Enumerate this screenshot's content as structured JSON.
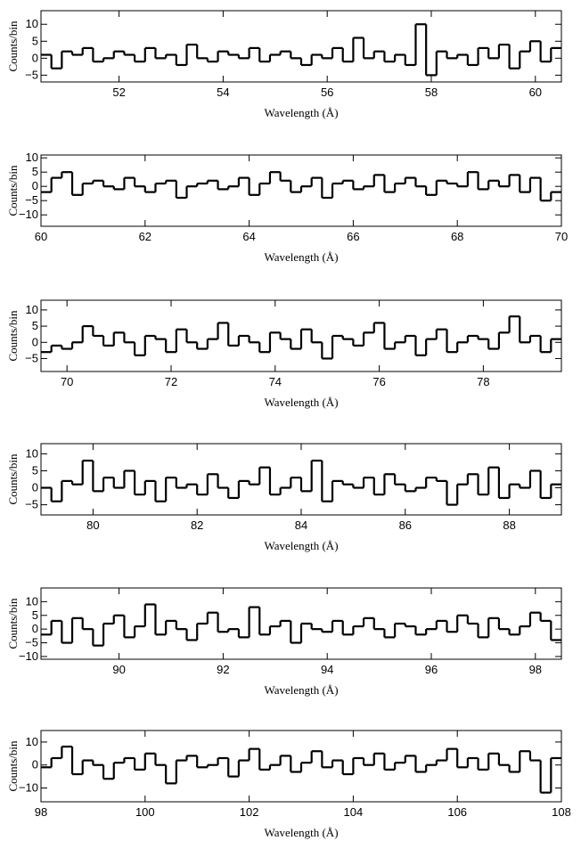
{
  "chart_data": [
    {
      "type": "histogram",
      "xlabel": "Wavelength (Å)",
      "ylabel": "Counts/bin",
      "color": "#000000",
      "bins": [
        50.5,
        50.7,
        50.9,
        51.1,
        51.3,
        51.5,
        51.7,
        51.9,
        52.1,
        52.3,
        52.5,
        52.7,
        52.9,
        53.1,
        53.3,
        53.5,
        53.7,
        53.9,
        54.1,
        54.3,
        54.5,
        54.7,
        54.9,
        55.1,
        55.3,
        55.5,
        55.7,
        55.9,
        56.1,
        56.3,
        56.5,
        56.7,
        56.9,
        57.1,
        57.3,
        57.5,
        57.7,
        57.9,
        58.1,
        58.3,
        58.5,
        58.7,
        58.9,
        59.1,
        59.3,
        59.5,
        59.7,
        59.9,
        60.1,
        60.3,
        60.5
      ],
      "values": [
        1,
        -3,
        2,
        1,
        3,
        -1,
        0,
        2,
        1,
        -1,
        3,
        0,
        1,
        -2,
        4,
        0,
        -1,
        2,
        1,
        0,
        3,
        -1,
        1,
        2,
        0,
        -2,
        1,
        0,
        3,
        -1,
        6,
        0,
        2,
        -1,
        1,
        -2,
        10,
        -5,
        2,
        0,
        1,
        -2,
        3,
        0,
        4,
        -3,
        2,
        5,
        -1,
        3
      ],
      "xlim": [
        50.5,
        60.5
      ],
      "xticks": [
        52,
        54,
        56,
        58,
        60
      ],
      "ylim": [
        -7,
        14
      ],
      "yticks": [
        {
          "value": -5,
          "label": "−5"
        },
        0,
        5,
        10
      ]
    },
    {
      "type": "histogram",
      "xlabel": "Wavelength (Å)",
      "ylabel": "Counts/bin",
      "color": "#000000",
      "bins": [
        60,
        60.2,
        60.4,
        60.6,
        60.8,
        61,
        61.2,
        61.4,
        61.6,
        61.8,
        62,
        62.2,
        62.4,
        62.6,
        62.8,
        63,
        63.2,
        63.4,
        63.6,
        63.8,
        64,
        64.2,
        64.4,
        64.6,
        64.8,
        65,
        65.2,
        65.4,
        65.6,
        65.8,
        66,
        66.2,
        66.4,
        66.6,
        66.8,
        67,
        67.2,
        67.4,
        67.6,
        67.8,
        68,
        68.2,
        68.4,
        68.6,
        68.8,
        69,
        69.2,
        69.4,
        69.6,
        69.8,
        70
      ],
      "values": [
        -2,
        3,
        5,
        -3,
        1,
        2,
        0,
        -1,
        3,
        0,
        -2,
        1,
        2,
        -4,
        0,
        1,
        2,
        -1,
        0,
        3,
        -3,
        1,
        5,
        2,
        -2,
        0,
        3,
        -4,
        1,
        2,
        -1,
        0,
        4,
        -2,
        1,
        3,
        0,
        -3,
        2,
        1,
        0,
        5,
        -1,
        2,
        0,
        4,
        -2,
        3,
        -5,
        -2
      ],
      "xlim": [
        60,
        70
      ],
      "xticks": [
        60,
        62,
        64,
        66,
        68,
        70
      ],
      "ylim": [
        -14,
        11
      ],
      "yticks": [
        {
          "value": -10,
          "label": "−10"
        },
        {
          "value": -5,
          "label": "−5"
        },
        0,
        5,
        10
      ]
    },
    {
      "type": "histogram",
      "xlabel": "Wavelength (Å)",
      "ylabel": "Counts/bin",
      "color": "#000000",
      "bins": [
        69.5,
        69.7,
        69.9,
        70.1,
        70.3,
        70.5,
        70.7,
        70.9,
        71.1,
        71.3,
        71.5,
        71.7,
        71.9,
        72.1,
        72.3,
        72.5,
        72.7,
        72.9,
        73.1,
        73.3,
        73.5,
        73.7,
        73.9,
        74.1,
        74.3,
        74.5,
        74.7,
        74.9,
        75.1,
        75.3,
        75.5,
        75.7,
        75.9,
        76.1,
        76.3,
        76.5,
        76.7,
        76.9,
        77.1,
        77.3,
        77.5,
        77.7,
        77.9,
        78.1,
        78.3,
        78.5,
        78.7,
        78.9,
        79.1,
        79.3,
        79.5
      ],
      "values": [
        -3,
        -1,
        -2,
        0,
        5,
        2,
        -1,
        3,
        0,
        -4,
        2,
        1,
        -3,
        4,
        0,
        -2,
        1,
        6,
        -1,
        2,
        0,
        -3,
        3,
        1,
        -2,
        4,
        0,
        -5,
        2,
        1,
        -1,
        3,
        6,
        -2,
        0,
        2,
        -4,
        1,
        4,
        -3,
        0,
        2,
        1,
        -2,
        3,
        8,
        0,
        2,
        -3,
        1
      ],
      "xlim": [
        69.5,
        79.5
      ],
      "xticks": [
        70,
        72,
        74,
        76,
        78
      ],
      "ylim": [
        -9,
        13
      ],
      "yticks": [
        {
          "value": -5,
          "label": "−5"
        },
        0,
        5,
        10
      ]
    },
    {
      "type": "histogram",
      "xlabel": "Wavelength (Å)",
      "ylabel": "Counts/bin",
      "color": "#000000",
      "bins": [
        79,
        79.2,
        79.4,
        79.6,
        79.8,
        80,
        80.2,
        80.4,
        80.6,
        80.8,
        81,
        81.2,
        81.4,
        81.6,
        81.8,
        82,
        82.2,
        82.4,
        82.6,
        82.8,
        83,
        83.2,
        83.4,
        83.6,
        83.8,
        84,
        84.2,
        84.4,
        84.6,
        84.8,
        85,
        85.2,
        85.4,
        85.6,
        85.8,
        86,
        86.2,
        86.4,
        86.6,
        86.8,
        87,
        87.2,
        87.4,
        87.6,
        87.8,
        88,
        88.2,
        88.4,
        88.6,
        88.8,
        89
      ],
      "values": [
        0,
        -4,
        2,
        1,
        8,
        -1,
        3,
        0,
        5,
        -2,
        2,
        -4,
        3,
        0,
        1,
        -2,
        4,
        0,
        -3,
        2,
        1,
        6,
        -2,
        0,
        3,
        -1,
        8,
        -4,
        2,
        1,
        0,
        3,
        -2,
        4,
        1,
        -1,
        0,
        3,
        2,
        -5,
        1,
        4,
        -2,
        6,
        -3,
        1,
        0,
        5,
        -3,
        1
      ],
      "xlim": [
        79,
        89
      ],
      "xticks": [
        80,
        82,
        84,
        86,
        88
      ],
      "ylim": [
        -8,
        13
      ],
      "yticks": [
        {
          "value": -5,
          "label": "−5"
        },
        0,
        5,
        10
      ]
    },
    {
      "type": "histogram",
      "xlabel": "Wavelength (Å)",
      "ylabel": "Counts/bin",
      "color": "#000000",
      "bins": [
        88.5,
        88.7,
        88.9,
        89.1,
        89.3,
        89.5,
        89.7,
        89.9,
        90.1,
        90.3,
        90.5,
        90.7,
        90.9,
        91.1,
        91.3,
        91.5,
        91.7,
        91.9,
        92.1,
        92.3,
        92.5,
        92.7,
        92.9,
        93.1,
        93.3,
        93.5,
        93.7,
        93.9,
        94.1,
        94.3,
        94.5,
        94.7,
        94.9,
        95.1,
        95.3,
        95.5,
        95.7,
        95.9,
        96.1,
        96.3,
        96.5,
        96.7,
        96.9,
        97.1,
        97.3,
        97.5,
        97.7,
        97.9,
        98.1,
        98.3,
        98.5
      ],
      "values": [
        -2,
        3,
        -5,
        4,
        0,
        -6,
        2,
        5,
        -3,
        1,
        9,
        -2,
        3,
        0,
        -4,
        2,
        6,
        -1,
        0,
        -3,
        8,
        -2,
        1,
        3,
        -5,
        2,
        0,
        -1,
        3,
        -2,
        1,
        4,
        0,
        -3,
        2,
        1,
        -2,
        0,
        3,
        -1,
        5,
        2,
        -3,
        4,
        0,
        -2,
        1,
        6,
        3,
        -4
      ],
      "xlim": [
        88.5,
        98.5
      ],
      "xticks": [
        90,
        92,
        94,
        96,
        98
      ],
      "ylim": [
        -11,
        15
      ],
      "yticks": [
        {
          "value": -10,
          "label": "−10"
        },
        {
          "value": -5,
          "label": "−5"
        },
        0,
        5,
        10
      ]
    },
    {
      "type": "histogram",
      "xlabel": "Wavelength (Å)",
      "ylabel": "Counts/bin",
      "color": "#000000",
      "bins": [
        98,
        98.2,
        98.4,
        98.6,
        98.8,
        99,
        99.2,
        99.4,
        99.6,
        99.8,
        100,
        100.2,
        100.4,
        100.6,
        100.8,
        101,
        101.2,
        101.4,
        101.6,
        101.8,
        102,
        102.2,
        102.4,
        102.6,
        102.8,
        103,
        103.2,
        103.4,
        103.6,
        103.8,
        104,
        104.2,
        104.4,
        104.6,
        104.8,
        105,
        105.2,
        105.4,
        105.6,
        105.8,
        106,
        106.2,
        106.4,
        106.6,
        106.8,
        107,
        107.2,
        107.4,
        107.6,
        107.8,
        108
      ],
      "values": [
        -1,
        3,
        8,
        -4,
        2,
        0,
        -6,
        1,
        3,
        -2,
        5,
        0,
        -8,
        2,
        4,
        -1,
        0,
        3,
        -5,
        2,
        7,
        -2,
        0,
        4,
        -3,
        1,
        6,
        -1,
        2,
        -4,
        3,
        0,
        5,
        -2,
        1,
        4,
        -3,
        0,
        2,
        7,
        -1,
        3,
        -2,
        5,
        0,
        -3,
        6,
        2,
        -12,
        3
      ],
      "xlim": [
        98,
        108
      ],
      "xticks": [
        98,
        100,
        102,
        104,
        106,
        108
      ],
      "ylim": [
        -16,
        15
      ],
      "yticks": [
        {
          "value": -10,
          "label": "−10"
        },
        0,
        10
      ]
    }
  ]
}
